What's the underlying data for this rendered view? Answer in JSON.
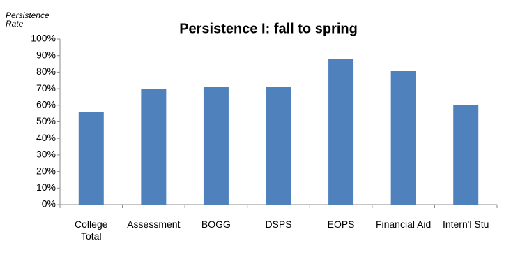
{
  "chart_data": {
    "type": "bar",
    "title": "Persistence I:  fall to spring",
    "y_label": "Persistence Rate",
    "categories": [
      "College Total",
      "Assessment",
      "BOGG",
      "DSPS",
      "EOPS",
      "Financial Aid",
      "Intern'l Stu"
    ],
    "values": [
      56,
      70,
      71,
      71,
      88,
      81,
      60
    ],
    "color": "#4f81bd",
    "ylim": [
      0,
      100
    ],
    "yticks": [
      {
        "value": 0,
        "label": "0%"
      },
      {
        "value": 10,
        "label": "10%"
      },
      {
        "value": 20,
        "label": "20%"
      },
      {
        "value": 30,
        "label": "30%"
      },
      {
        "value": 40,
        "label": "40%"
      },
      {
        "value": 50,
        "label": "50%"
      },
      {
        "value": 60,
        "label": "60%"
      },
      {
        "value": 70,
        "label": "70%"
      },
      {
        "value": 80,
        "label": "80%"
      },
      {
        "value": 90,
        "label": "90%"
      },
      {
        "value": 100,
        "label": "100%"
      }
    ],
    "grid": false
  }
}
